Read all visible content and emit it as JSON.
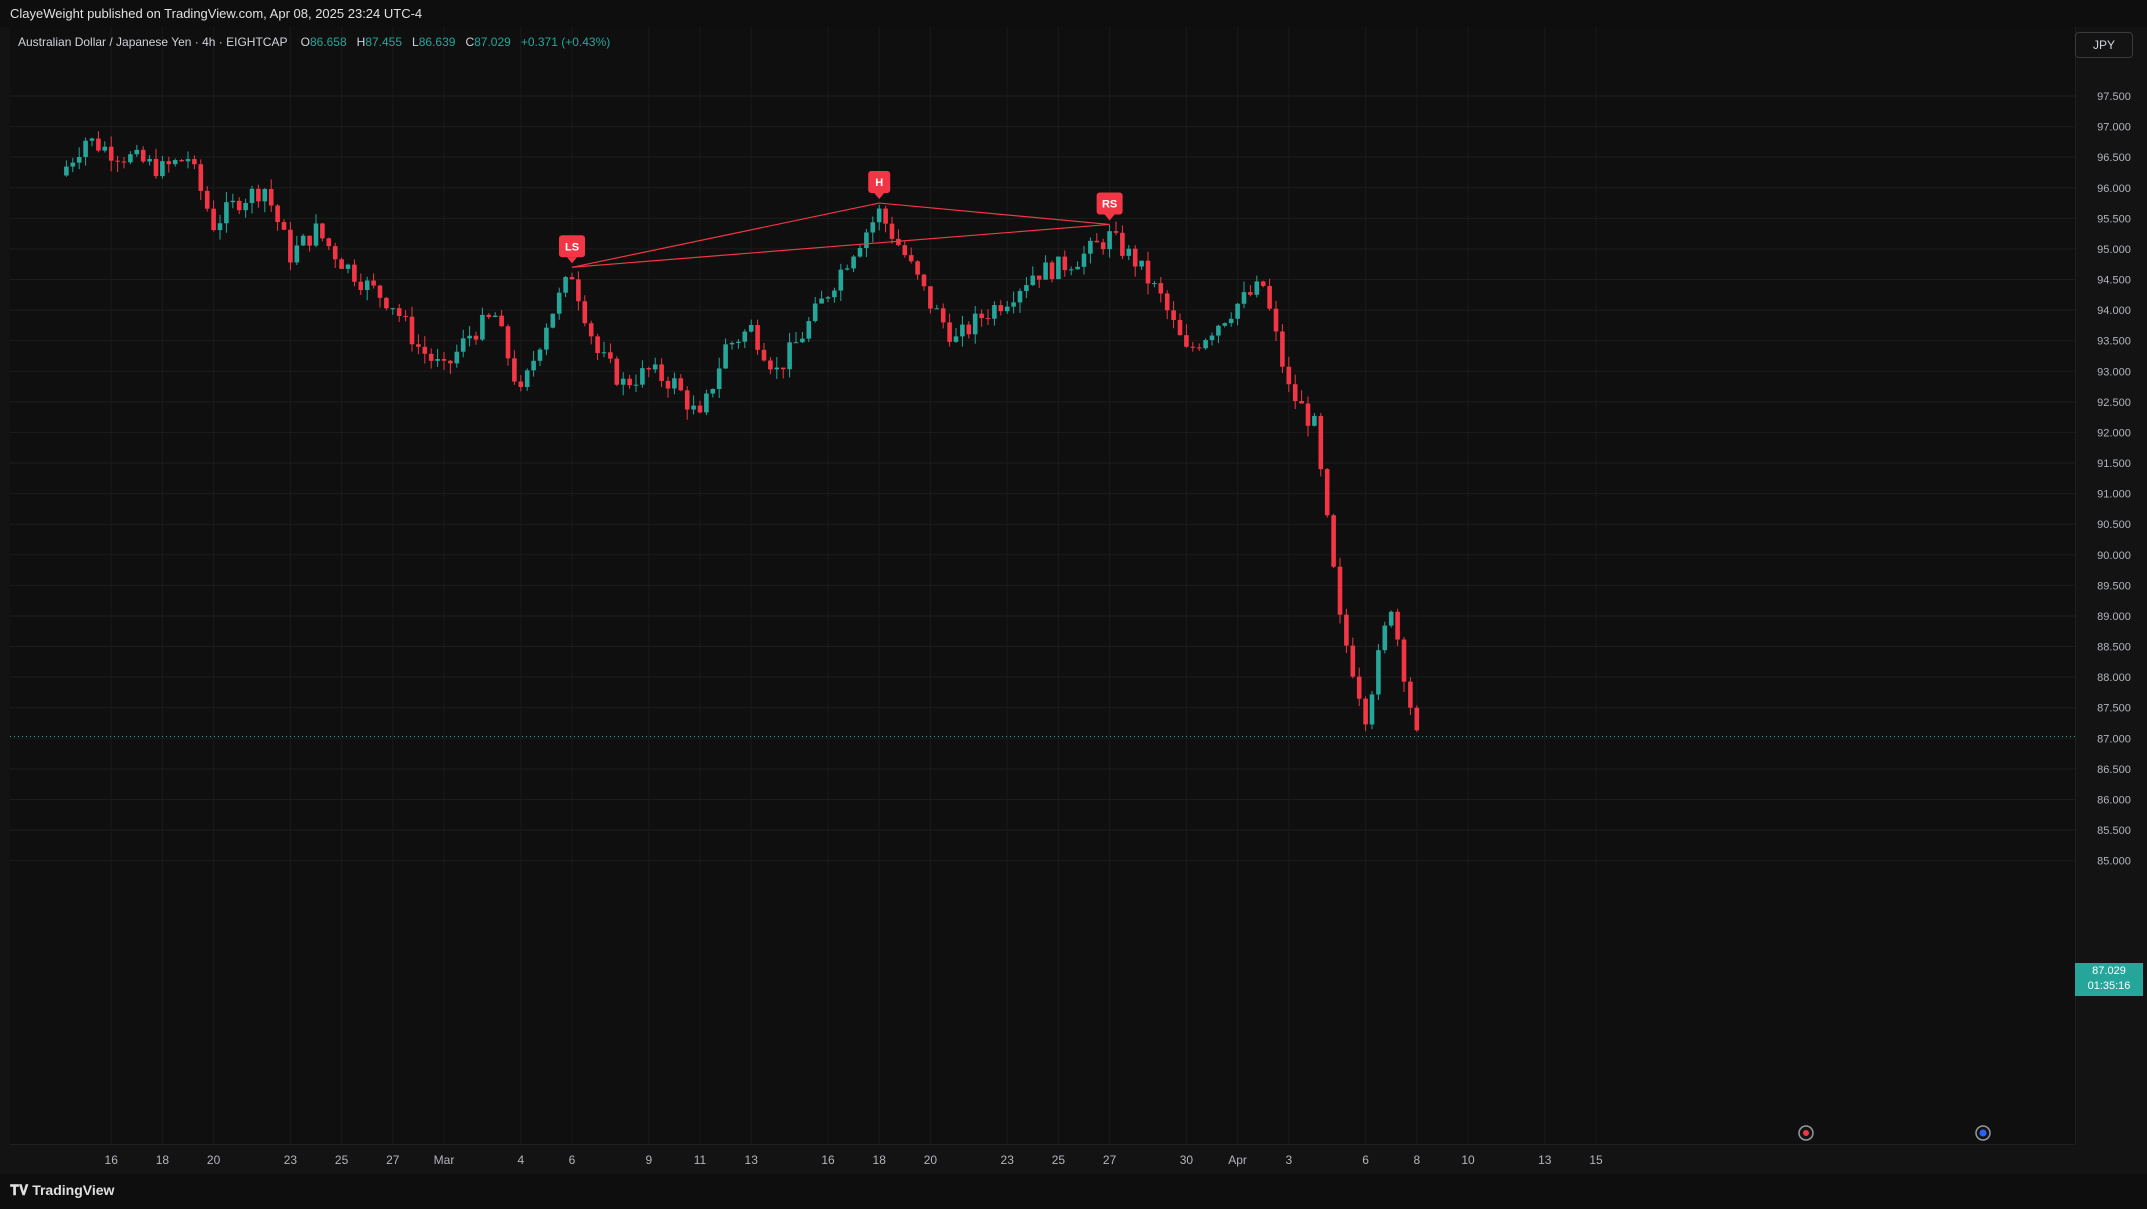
{
  "header": {
    "published": "ClayeWeight published on TradingView.com, Apr 08, 2025 23:24 UTC-4"
  },
  "legend": {
    "symbol": "Australian Dollar / Japanese Yen · 4h · EIGHTCAP",
    "o_label": "O",
    "o": "86.658",
    "h_label": "H",
    "h": "87.455",
    "l_label": "L",
    "l": "86.639",
    "c_label": "C",
    "c": "87.029",
    "change": "+0.371 (+0.43%)"
  },
  "currency_button": "JPY",
  "price_axis": [
    "97.500",
    "97.000",
    "96.500",
    "96.000",
    "95.500",
    "95.000",
    "94.500",
    "94.000",
    "93.500",
    "93.000",
    "92.500",
    "92.000",
    "91.500",
    "91.000",
    "90.500",
    "90.000",
    "89.500",
    "89.000",
    "88.500",
    "88.000",
    "87.500",
    "87.000",
    "86.500",
    "86.000",
    "85.500",
    "85.000"
  ],
  "time_axis": [
    "16",
    "18",
    "20",
    "23",
    "25",
    "27",
    "Mar",
    "4",
    "6",
    "9",
    "11",
    "13",
    "16",
    "18",
    "20",
    "23",
    "25",
    "27",
    "30",
    "Apr",
    "3",
    "6",
    "8",
    "10",
    "13",
    "15"
  ],
  "last_price": {
    "price": "87.029",
    "countdown": "01:35:16"
  },
  "pattern_labels": {
    "ls": "LS",
    "h": "H",
    "rs": "RS"
  },
  "footer": {
    "brand": "TradingView"
  },
  "colors": {
    "up": "#26a69a",
    "down": "#f23645",
    "pattern": "#f23645"
  },
  "chart_data": {
    "type": "candlestick",
    "symbol": "Australian Dollar / Japanese Yen",
    "timeframe": "4h",
    "y_range": [
      85.0,
      97.5
    ],
    "last_close": 87.029,
    "pattern": {
      "name": "Head and Shoulders",
      "points": [
        {
          "label": "LS",
          "date": "Mar 6",
          "price": 94.7
        },
        {
          "label": "H",
          "date": "Mar 18",
          "price": 95.75
        },
        {
          "label": "RS",
          "date": "Mar 27",
          "price": 95.4
        }
      ]
    },
    "price_path": [
      [
        "Feb 14",
        96.2
      ],
      [
        "Feb 15",
        96.8
      ],
      [
        "Feb 16",
        96.6
      ],
      [
        "Feb 18",
        96.3
      ],
      [
        "Feb 19",
        96.5
      ],
      [
        "Feb 20",
        95.4
      ],
      [
        "Feb 21",
        95.8
      ],
      [
        "Feb 22",
        96.0
      ],
      [
        "Feb 23",
        94.9
      ],
      [
        "Feb 24",
        95.3
      ],
      [
        "Feb 25",
        94.8
      ],
      [
        "Feb 26",
        94.4
      ],
      [
        "Feb 27",
        94.1
      ],
      [
        "Feb 28",
        93.4
      ],
      [
        "Mar 1",
        93.0
      ],
      [
        "Mar 2",
        93.6
      ],
      [
        "Mar 3",
        93.9
      ],
      [
        "Mar 4",
        92.6
      ],
      [
        "Mar 5",
        93.8
      ],
      [
        "Mar 6",
        94.6
      ],
      [
        "Mar 7",
        93.3
      ],
      [
        "Mar 8",
        92.8
      ],
      [
        "Mar 9",
        93.0
      ],
      [
        "Mar 10",
        92.8
      ],
      [
        "Mar 11",
        92.2
      ],
      [
        "Mar 12",
        93.4
      ],
      [
        "Mar 13",
        93.7
      ],
      [
        "Mar 14",
        93.0
      ],
      [
        "Mar 15",
        93.6
      ],
      [
        "Mar 16",
        94.3
      ],
      [
        "Mar 17",
        95.0
      ],
      [
        "Mar 18",
        95.6
      ],
      [
        "Mar 19",
        94.9
      ],
      [
        "Mar 20",
        94.1
      ],
      [
        "Mar 21",
        93.5
      ],
      [
        "Mar 22",
        93.9
      ],
      [
        "Mar 23",
        94.2
      ],
      [
        "Mar 24",
        94.6
      ],
      [
        "Mar 25",
        94.7
      ],
      [
        "Mar 26",
        94.9
      ],
      [
        "Mar 27",
        95.2
      ],
      [
        "Mar 28",
        94.8
      ],
      [
        "Mar 29",
        94.2
      ],
      [
        "Mar 30",
        93.3
      ],
      [
        "Mar 31",
        93.7
      ],
      [
        "Apr 1",
        94.1
      ],
      [
        "Apr 2",
        94.4
      ],
      [
        "Apr 3",
        92.7
      ],
      [
        "Apr 4",
        92.1
      ],
      [
        "Apr 5",
        88.9
      ],
      [
        "Apr 6",
        87.4
      ],
      [
        "Apr 7",
        89.2
      ],
      [
        "Apr 8",
        87.0
      ]
    ]
  }
}
